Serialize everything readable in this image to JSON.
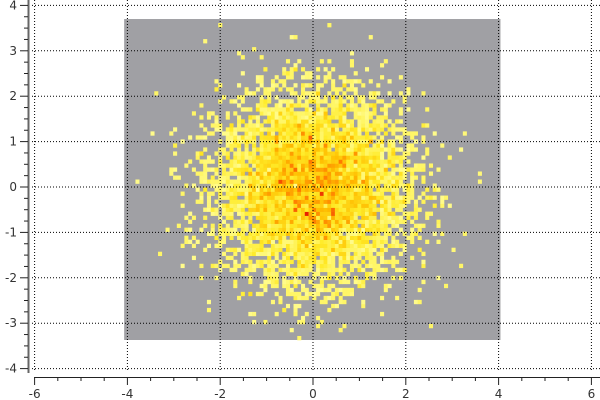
{
  "chart_data": {
    "type": "heatmap",
    "title": "",
    "xlabel": "",
    "ylabel": "",
    "xlim": [
      -6,
      6
    ],
    "ylim": [
      -4,
      4
    ],
    "x_ticks": [
      "-6",
      "-4",
      "-2",
      "0",
      "2",
      "4",
      "6"
    ],
    "y_ticks": [
      "-4",
      "-3",
      "-2",
      "-1",
      "0",
      "1",
      "2",
      "3",
      "4"
    ],
    "histogram_x_range": [
      -4.07,
      4.04
    ],
    "histogram_y_range": [
      -3.37,
      3.7
    ],
    "bins": [
      100,
      80
    ],
    "distribution": {
      "kind": "2D gaussian",
      "mean": [
        0,
        0
      ],
      "sigma": [
        1,
        1
      ]
    },
    "grid": true,
    "colors": {
      "empty_bin": "#a0a0a4",
      "low": "#ffff99",
      "mid": "#ffd000",
      "high": "#e82000",
      "grid": "#000000"
    }
  }
}
